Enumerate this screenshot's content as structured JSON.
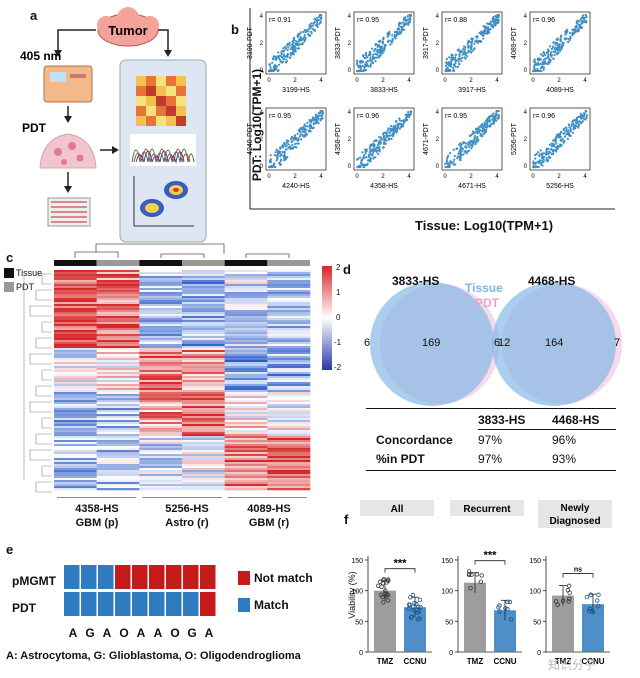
{
  "panels": {
    "a": {
      "label": "a",
      "tumor": "Tumor",
      "laser": "405 nm",
      "pdt": "PDT"
    },
    "b": {
      "label": "b",
      "ylabel": "PDT: Log10(TPM+1)",
      "xlabel": "Tissue: Log10(TPM+1)",
      "plots": [
        {
          "r": "r= 0.91",
          "x": "3199-HS",
          "y": "3199-PDT"
        },
        {
          "r": "r= 0.95",
          "x": "3833-HS",
          "y": "3833-PDT"
        },
        {
          "r": "r= 0.88",
          "x": "3917-HS",
          "y": "3917-PDT"
        },
        {
          "r": "r= 0.96",
          "x": "4089-HS",
          "y": "4089-PDT"
        },
        {
          "r": "r= 0.95",
          "x": "4240-HS",
          "y": "4240-PDT"
        },
        {
          "r": "r= 0.96",
          "x": "4358-HS",
          "y": "4358-PDT"
        },
        {
          "r": "r= 0.95",
          "x": "4671-HS",
          "y": "4671-PDT"
        },
        {
          "r": "r= 0.96",
          "x": "5256-HS",
          "y": "5256-PDT"
        }
      ],
      "ticks_x": [
        "0",
        "2",
        "4"
      ],
      "ticks_y": [
        "0",
        "2",
        "4"
      ]
    },
    "c": {
      "label": "c",
      "legend": [
        "Tissue",
        "PDT"
      ],
      "scale": [
        "2",
        "1",
        "0",
        "-1",
        "-2"
      ],
      "groups": [
        {
          "id": "4358-HS",
          "type": "GBM (p)"
        },
        {
          "id": "5256-HS",
          "type": "Astro (r)"
        },
        {
          "id": "4089-HS",
          "type": "GBM (r)"
        }
      ]
    },
    "d": {
      "label": "d",
      "legend_tissue": "Tissue",
      "legend_pdt": "PDT",
      "venn": [
        {
          "title": "3833-HS",
          "left": "6",
          "center": "169",
          "right": "6"
        },
        {
          "title": "4468-HS",
          "left": "12",
          "center": "164",
          "right": "7"
        }
      ],
      "table": {
        "headers": [
          "3833-HS",
          "4468-HS"
        ],
        "rows": [
          {
            "label": "Concordance",
            "v1": "97%",
            "v2": "96%"
          },
          {
            "label": "%in PDT",
            "v1": "97%",
            "v2": "93%"
          }
        ]
      }
    },
    "e": {
      "label": "e",
      "rows": [
        "pMGMT",
        "PDT"
      ],
      "legend": [
        "Not match",
        "Match"
      ],
      "letters": [
        "A",
        "G",
        "A",
        "O",
        "A",
        "A",
        "O",
        "G",
        "A"
      ],
      "footnote": "A: Astrocytoma, G: Glioblastoma, O: Oligodendroglioma",
      "pmgmt_match": [
        1,
        1,
        1,
        0,
        0,
        0,
        0,
        0,
        0
      ],
      "pdt_match": [
        1,
        1,
        1,
        1,
        1,
        1,
        1,
        1,
        0
      ]
    },
    "f": {
      "label": "f",
      "ylabel": "Viability (%)",
      "yticks": [
        "0",
        "50",
        "100",
        "150"
      ],
      "subplots": [
        {
          "title": "All",
          "sig": "***",
          "categories": [
            "TMZ",
            "CCNU"
          ],
          "values": [
            100,
            73
          ]
        },
        {
          "title": "Recurrent",
          "sig": "***",
          "categories": [
            "TMZ",
            "CCNU"
          ],
          "values": [
            113,
            68
          ]
        },
        {
          "title": "Newly Diagnosed",
          "sig": "ns",
          "categories": [
            "TMZ",
            "CCNU"
          ],
          "values": [
            92,
            78
          ]
        }
      ]
    },
    "watermark": "知识分子"
  },
  "colors": {
    "blue": "#2f7bbf",
    "red": "#c61b1b",
    "tumor": "#f4a39a",
    "scatter": "#3f8fc4",
    "venn_tissue": "#7cb6e5",
    "venn_pdt": "#f2bfdc",
    "bar_grey": "#8c8c8c"
  },
  "chart_data": [
    {
      "type": "bar",
      "title": "All",
      "categories": [
        "TMZ",
        "CCNU"
      ],
      "values": [
        100,
        73
      ],
      "ylabel": "Viability (%)",
      "ylim": [
        0,
        150
      ]
    },
    {
      "type": "bar",
      "title": "Recurrent",
      "categories": [
        "TMZ",
        "CCNU"
      ],
      "values": [
        113,
        68
      ],
      "ylabel": "",
      "ylim": [
        0,
        150
      ]
    },
    {
      "type": "bar",
      "title": "Newly Diagnosed",
      "categories": [
        "TMZ",
        "CCNU"
      ],
      "values": [
        92,
        78
      ],
      "ylabel": "",
      "ylim": [
        0,
        150
      ]
    }
  ]
}
